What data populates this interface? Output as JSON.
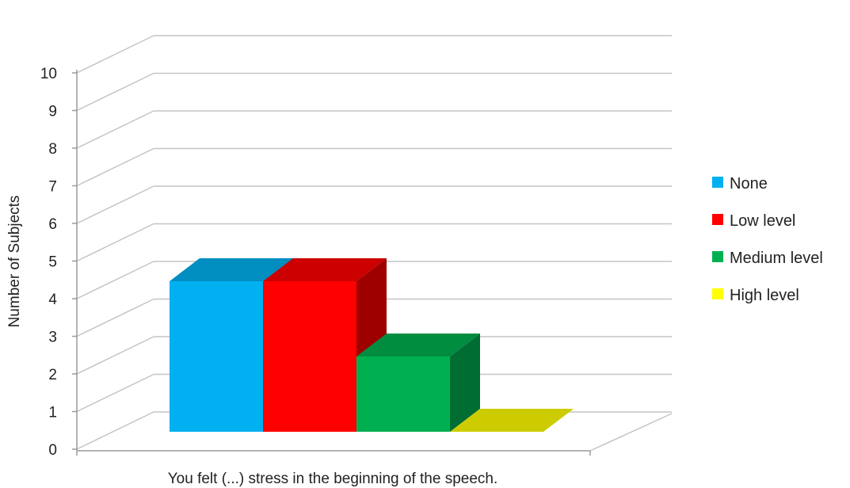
{
  "chart_data": {
    "type": "bar",
    "title": "",
    "xlabel": "You felt (...) stress in the beginning of the speech.",
    "ylabel": "Number of Subjects",
    "ylim": [
      0,
      10
    ],
    "yticks": [
      "0",
      "1",
      "2",
      "3",
      "4",
      "5",
      "6",
      "7",
      "8",
      "9",
      "10"
    ],
    "grid": true,
    "legend_position": "right",
    "series": [
      {
        "name": "None",
        "value": 4,
        "color": "#00b0f0"
      },
      {
        "name": "Low level",
        "value": 4,
        "color": "#ff0000"
      },
      {
        "name": "Medium level",
        "value": 2,
        "color": "#00b050"
      },
      {
        "name": "High level",
        "value": 0,
        "color": "#ffff00"
      }
    ]
  }
}
